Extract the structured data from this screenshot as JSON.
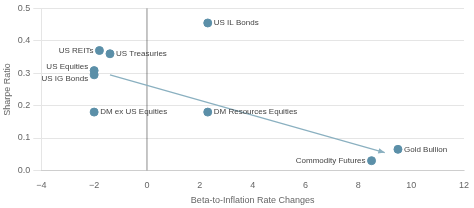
{
  "chart_data": {
    "type": "scatter",
    "xlabel": "Beta-to-Inflation Rate Changes",
    "ylabel": "Sharpe Ratio",
    "x": [
      2.3,
      -1.8,
      -1.4,
      -2.0,
      -2.0,
      -2.0,
      2.3,
      8.5,
      9.5
    ],
    "values": [
      0.455,
      0.37,
      0.36,
      0.308,
      0.295,
      0.18,
      0.18,
      0.03,
      0.065
    ],
    "point_labels": [
      "US IL Bonds",
      "US REITs",
      "US Treasuries",
      "US Equities",
      "US IG Bonds",
      "DM ex US Equities",
      "DM Resources Equities",
      "Commodity Futures",
      "Gold Bullion"
    ],
    "color": "#5b8fa8",
    "trendline": {
      "x": [
        -1.4,
        9.0
      ],
      "y": [
        0.295,
        0.055
      ],
      "color": "#8ab0c0"
    },
    "vline": 0,
    "xlim": [
      -4,
      12
    ],
    "ylim": [
      0,
      0.5
    ],
    "xticks": [
      {
        "value": -4,
        "label": "−4"
      },
      {
        "value": -2,
        "label": "−2"
      },
      0,
      2,
      4,
      6,
      8,
      10,
      12
    ],
    "yticks": [
      {
        "value": 0,
        "label": "0.0"
      },
      0.1,
      0.2,
      0.3,
      0.4,
      0.5
    ],
    "grid": "y"
  }
}
